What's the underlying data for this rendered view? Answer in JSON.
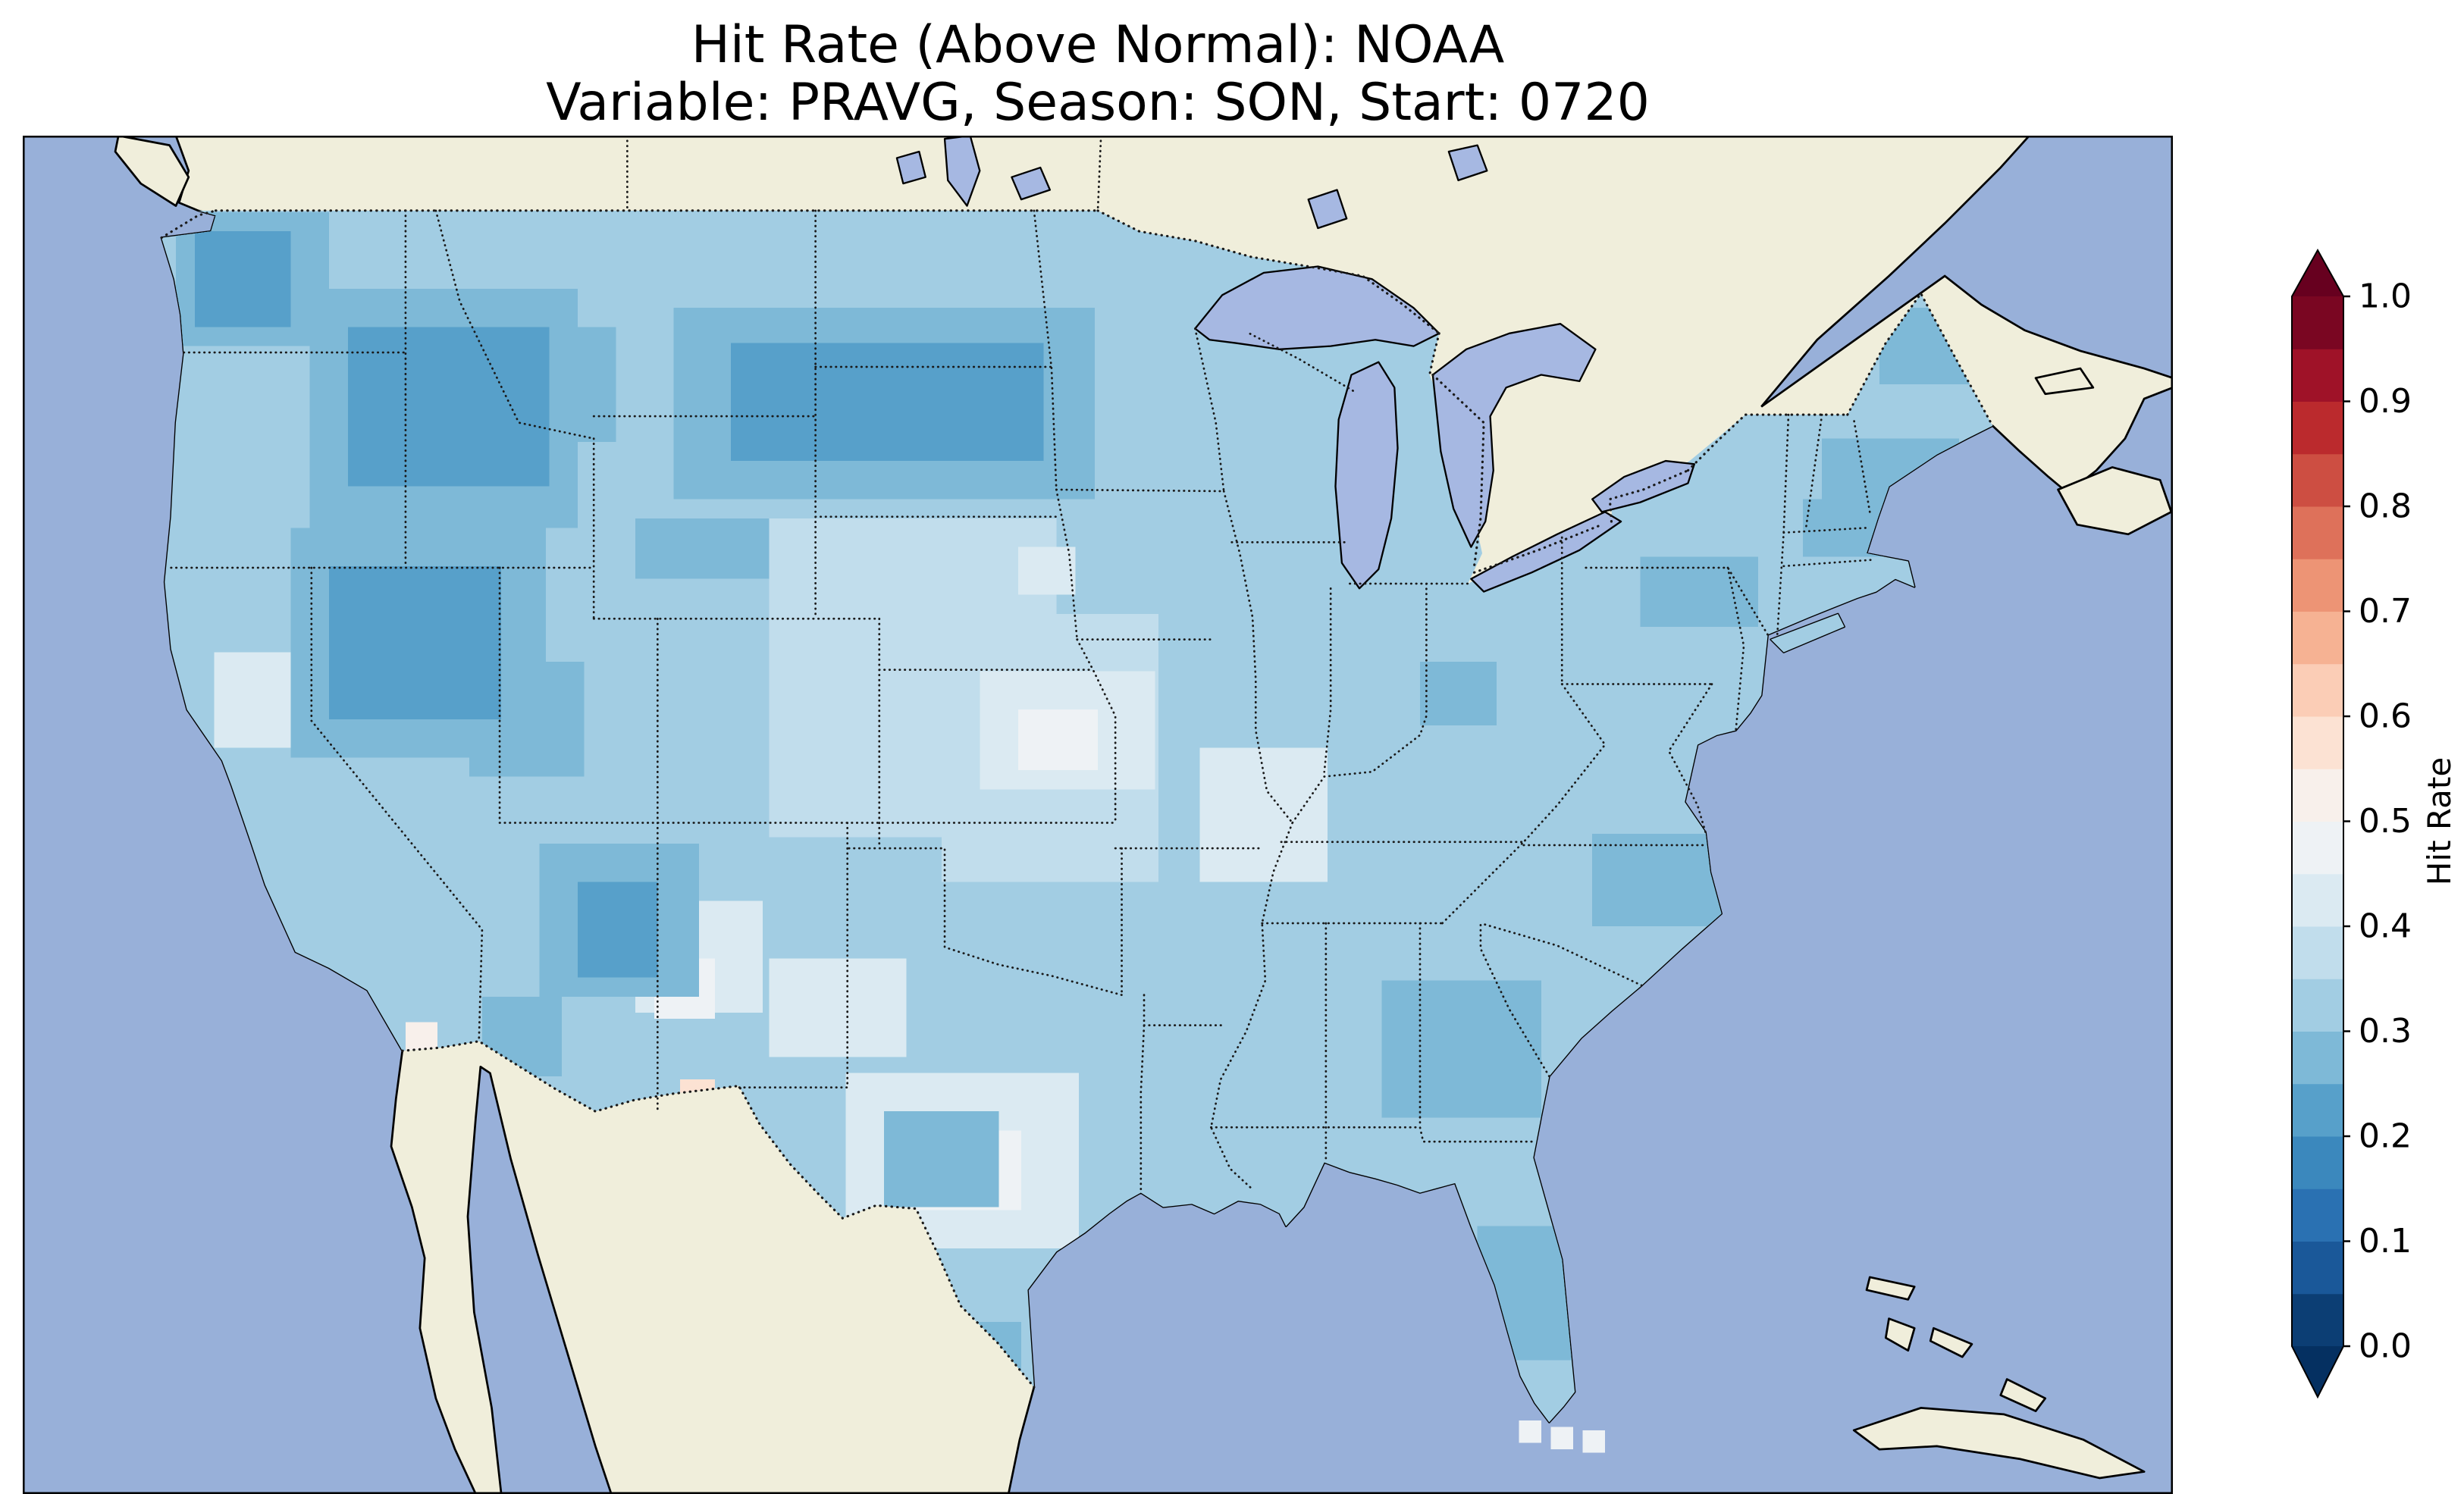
{
  "figure": {
    "title_line1": "Hit Rate (Above Normal): NOAA",
    "title_line2": "Variable: PRAVG, Season: SON, Start: 0720"
  },
  "colorbar": {
    "label": "Hit Rate",
    "ticks": [
      {
        "value": 0.0,
        "label": "0.0"
      },
      {
        "value": 0.1,
        "label": "0.1"
      },
      {
        "value": 0.2,
        "label": "0.2"
      },
      {
        "value": 0.3,
        "label": "0.3"
      },
      {
        "value": 0.4,
        "label": "0.4"
      },
      {
        "value": 0.5,
        "label": "0.5"
      },
      {
        "value": 0.6,
        "label": "0.6"
      },
      {
        "value": 0.7,
        "label": "0.7"
      },
      {
        "value": 0.8,
        "label": "0.8"
      },
      {
        "value": 0.9,
        "label": "0.9"
      },
      {
        "value": 1.0,
        "label": "1.0"
      }
    ]
  },
  "map_colors": {
    "ocean": "#98b0d9",
    "land": "#f0eedb",
    "lake": "#a6b8e2",
    "coastline": "#000000",
    "border_dots": "#1a1a1a"
  },
  "chart_data": {
    "type": "heatmap",
    "title": "Hit Rate (Above Normal): NOAA",
    "subtitle": "Variable: PRAVG, Season: SON, Start: 0720",
    "dataset": "NOAA",
    "variable": "PRAVG",
    "season": "SON",
    "start": "0720",
    "metric": "Hit Rate",
    "region_shown": "Contiguous United States",
    "legend_position": "right-vertical-colorbar",
    "value_range": [
      0.0,
      1.0
    ],
    "colormap": {
      "name": "RdBu_r discrete",
      "step": 0.05,
      "band_colors": [
        "#0c3e74",
        "#1a5899",
        "#2a71b2",
        "#3b88bd",
        "#57a0ca",
        "#7eb9d7",
        "#a2cde3",
        "#c1ddec",
        "#dbeaf2",
        "#eef2f5",
        "#f8f0eb",
        "#fce2d3",
        "#fbcdb6",
        "#f6b293",
        "#ed9475",
        "#de715a",
        "#cd4e42",
        "#bb2a2d",
        "#9f1228",
        "#7a0622"
      ],
      "under_color": "#053061",
      "over_color": "#67001f"
    },
    "base_hit_rate": 0.33,
    "anomaly_regions": [
      {
        "name": "central-plains-light",
        "hit_rate": 0.38,
        "rects": [
          [
            468,
            240,
            180,
            200
          ],
          [
            576,
            300,
            136,
            168
          ]
        ]
      },
      {
        "name": "california-central",
        "hit_rate": 0.42,
        "rects": [
          [
            120,
            324,
            48,
            60
          ]
        ]
      },
      {
        "name": "texas-pale",
        "hit_rate": 0.42,
        "rects": [
          [
            516,
            588,
            146,
            110
          ],
          [
            468,
            516,
            86,
            62
          ]
        ]
      },
      {
        "name": "texas-white",
        "hit_rate": 0.47,
        "rects": [
          [
            552,
            624,
            74,
            50
          ]
        ]
      },
      {
        "name": "new-mexico-pale",
        "hit_rate": 0.42,
        "rects": [
          [
            384,
            480,
            80,
            70
          ]
        ]
      },
      {
        "name": "new-mexico-white",
        "hit_rate": 0.47,
        "rects": [
          [
            396,
            516,
            38,
            38
          ]
        ]
      },
      {
        "name": "kansas-nebraska-pale",
        "hit_rate": 0.42,
        "rects": [
          [
            600,
            336,
            110,
            74
          ],
          [
            624,
            258,
            36,
            30
          ]
        ]
      },
      {
        "name": "kansas-white",
        "hit_rate": 0.47,
        "rects": [
          [
            624,
            360,
            50,
            38
          ]
        ]
      },
      {
        "name": "missouri-pale",
        "hit_rate": 0.42,
        "rects": [
          [
            738,
            384,
            80,
            84
          ]
        ]
      },
      {
        "name": "pacific-northwest",
        "hit_rate": 0.27,
        "rects": [
          [
            96,
            48,
            96,
            84
          ]
        ]
      },
      {
        "name": "pacific-northwest-core",
        "hit_rate": 0.22,
        "rects": [
          [
            108,
            60,
            60,
            60
          ]
        ]
      },
      {
        "name": "northern-rockies",
        "hit_rate": 0.27,
        "rects": [
          [
            180,
            96,
            168,
            150
          ],
          [
            336,
            120,
            36,
            72
          ]
        ]
      },
      {
        "name": "northern-rockies-core",
        "hit_rate": 0.22,
        "rects": [
          [
            204,
            120,
            126,
            100
          ]
        ]
      },
      {
        "name": "great-basin",
        "hit_rate": 0.27,
        "rects": [
          [
            168,
            246,
            160,
            144
          ],
          [
            280,
            330,
            72,
            72
          ]
        ]
      },
      {
        "name": "great-basin-core",
        "hit_rate": 0.22,
        "rects": [
          [
            192,
            270,
            108,
            96
          ]
        ]
      },
      {
        "name": "dakotas",
        "hit_rate": 0.27,
        "rects": [
          [
            408,
            108,
            264,
            120
          ]
        ]
      },
      {
        "name": "dakotas-core",
        "hit_rate": 0.22,
        "rects": [
          [
            444,
            130,
            196,
            74
          ]
        ]
      },
      {
        "name": "wyoming-colorado",
        "hit_rate": 0.27,
        "rects": [
          [
            384,
            240,
            84,
            38
          ]
        ]
      },
      {
        "name": "four-corners",
        "hit_rate": 0.27,
        "rects": [
          [
            324,
            444,
            100,
            96
          ]
        ]
      },
      {
        "name": "four-corners-core",
        "hit_rate": 0.22,
        "rects": [
          [
            348,
            468,
            50,
            60
          ]
        ]
      },
      {
        "name": "southwest-arizona",
        "hit_rate": 0.27,
        "rects": [
          [
            288,
            540,
            50,
            50
          ]
        ]
      },
      {
        "name": "south-texas",
        "hit_rate": 0.27,
        "rects": [
          [
            540,
            612,
            72,
            60
          ],
          [
            588,
            744,
            38,
            38
          ]
        ]
      },
      {
        "name": "georgia-alabama",
        "hit_rate": 0.27,
        "rects": [
          [
            852,
            530,
            100,
            86
          ]
        ]
      },
      {
        "name": "carolinas",
        "hit_rate": 0.27,
        "rects": [
          [
            984,
            438,
            100,
            58
          ]
        ]
      },
      {
        "name": "florida-peninsula",
        "hit_rate": 0.27,
        "rects": [
          [
            912,
            684,
            62,
            84
          ]
        ]
      },
      {
        "name": "new-england-coast",
        "hit_rate": 0.27,
        "rects": [
          [
            1128,
            190,
            86,
            60
          ],
          [
            1116,
            228,
            72,
            36
          ]
        ]
      },
      {
        "name": "northern-maine",
        "hit_rate": 0.27,
        "rects": [
          [
            1164,
            108,
            60,
            48
          ]
        ]
      },
      {
        "name": "upstate-ny-pa",
        "hit_rate": 0.27,
        "rects": [
          [
            1014,
            264,
            74,
            44
          ]
        ]
      },
      {
        "name": "indiana-ohio",
        "hit_rate": 0.27,
        "rects": [
          [
            876,
            330,
            48,
            40
          ]
        ]
      },
      {
        "name": "border-cell-new-mexico",
        "hit_rate": 0.57,
        "rects": [
          [
            412,
            592,
            22,
            22
          ]
        ]
      },
      {
        "name": "border-cell-california",
        "hit_rate": 0.52,
        "rects": [
          [
            240,
            556,
            20,
            20
          ]
        ]
      },
      {
        "name": "florida-keys-cells",
        "hit_rate": 0.47,
        "noclip": true,
        "rects": [
          [
            938,
            806,
            14,
            14
          ],
          [
            958,
            810,
            14,
            14
          ],
          [
            978,
            812,
            14,
            14
          ]
        ]
      }
    ]
  }
}
